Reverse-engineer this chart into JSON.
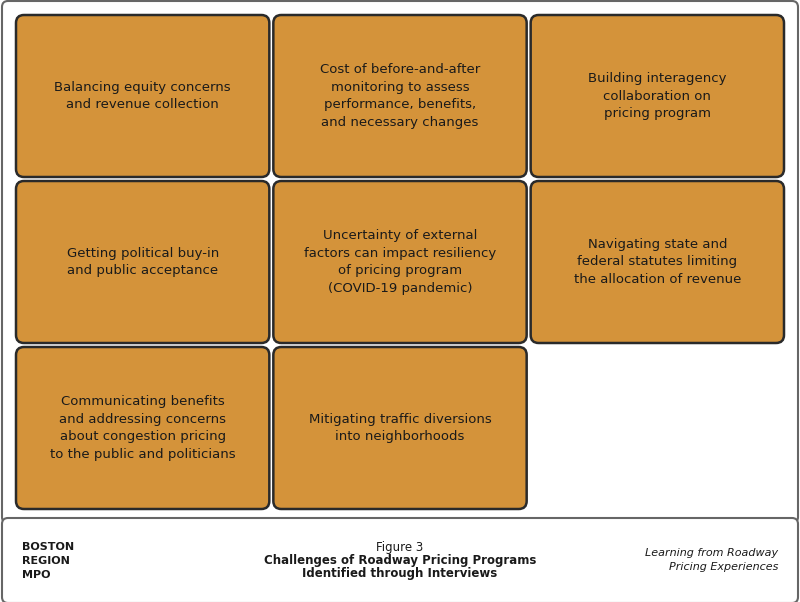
{
  "boxes": [
    {
      "row": 0,
      "col": 0,
      "text": "Balancing equity concerns\nand revenue collection"
    },
    {
      "row": 0,
      "col": 1,
      "text": "Cost of before-and-after\nmonitoring to assess\nperformance, benefits,\nand necessary changes"
    },
    {
      "row": 0,
      "col": 2,
      "text": "Building interagency\ncollaboration on\npricing program"
    },
    {
      "row": 1,
      "col": 0,
      "text": "Getting political buy-in\nand public acceptance"
    },
    {
      "row": 1,
      "col": 1,
      "text": "Uncertainty of external\nfactors can impact resiliency\nof pricing program\n(COVID-19 pandemic)"
    },
    {
      "row": 1,
      "col": 2,
      "text": "Navigating state and\nfederal statutes limiting\nthe allocation of revenue"
    },
    {
      "row": 2,
      "col": 0,
      "text": "Communicating benefits\nand addressing concerns\nabout congestion pricing\nto the public and politicians"
    },
    {
      "row": 2,
      "col": 1,
      "text": "Mitigating traffic diversions\ninto neighborhoods"
    }
  ],
  "box_color": "#D4933A",
  "box_edge_color": "#2A2A2A",
  "text_color": "#1A1A1A",
  "bg_color": "#FFFFFF",
  "outer_border_color": "#666666",
  "footer_border_color": "#666666",
  "footer_left": "BOSTON\nREGION\nMPO",
  "footer_center_line1": "Figure 3",
  "footer_center_line2": "Challenges of Roadway Pricing Programs",
  "footer_center_line3": "Identified through Interviews",
  "footer_right": "Learning from Roadway\nPricing Experiences",
  "font_size": 9.5,
  "footer_font_size": 8.0,
  "footer_title_font_size": 8.5
}
